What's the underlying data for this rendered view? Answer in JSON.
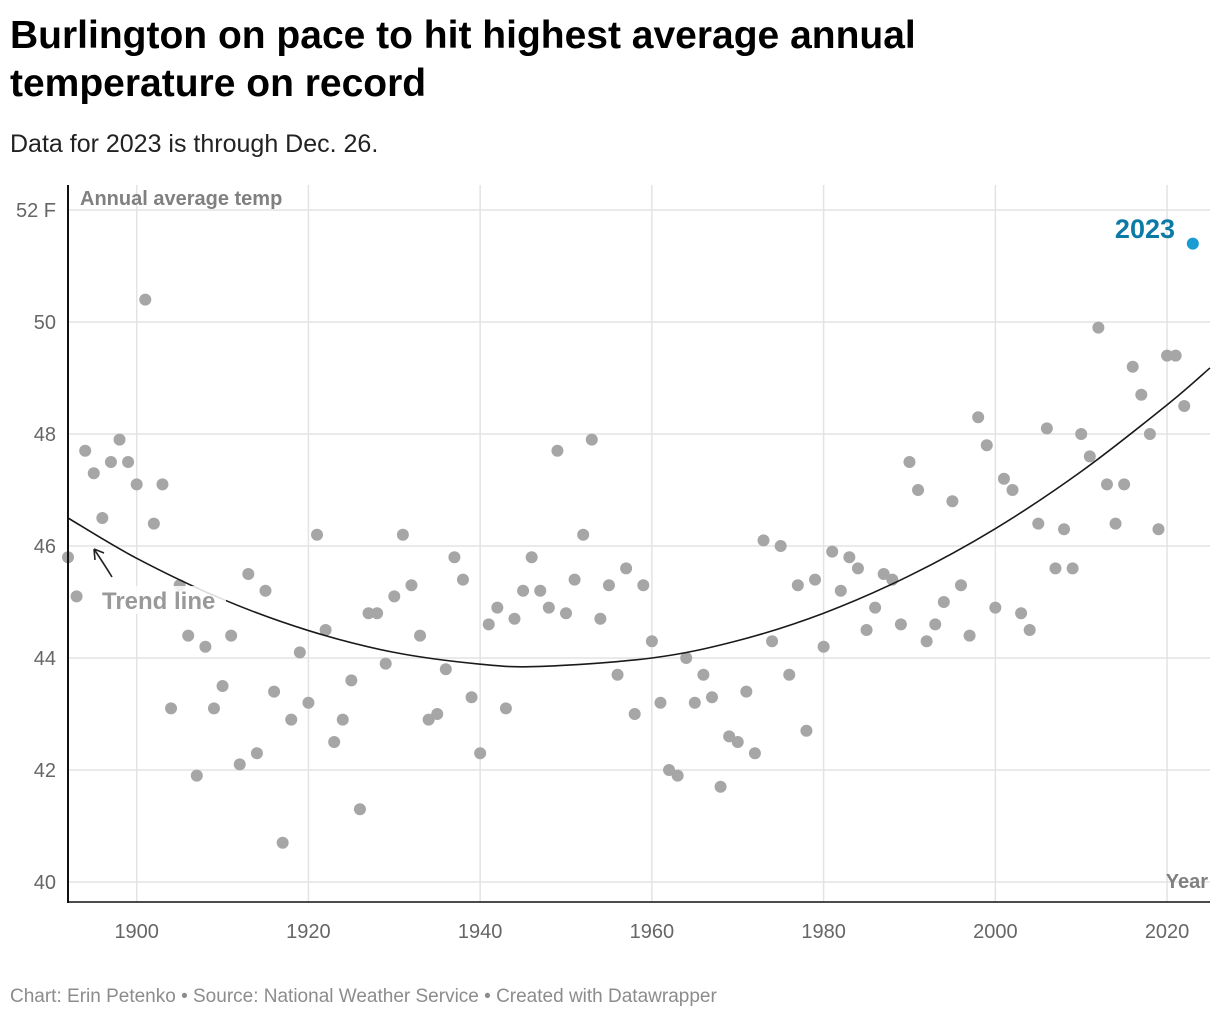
{
  "title": "Burlington on pace to hit highest average annual temperature on record",
  "subtitle": "Data for 2023 is through Dec. 26.",
  "footer": "Chart: Erin Petenko • Source: National Weather Service • Created with Datawrapper",
  "chart_data": {
    "type": "scatter",
    "ylabel": "Annual average temp",
    "xlabel": "Year",
    "xlim": [
      1892,
      2025
    ],
    "ylim": [
      40,
      52
    ],
    "xticks": [
      1900,
      1920,
      1940,
      1960,
      1980,
      2000,
      2020
    ],
    "yticks": [
      {
        "v": 52,
        "label": "52 F"
      },
      {
        "v": 50,
        "label": "50"
      },
      {
        "v": 48,
        "label": "48"
      },
      {
        "v": 46,
        "label": "46"
      },
      {
        "v": 44,
        "label": "44"
      },
      {
        "v": 42,
        "label": "42"
      },
      {
        "v": 40,
        "label": "40"
      }
    ],
    "grid": true,
    "colors": {
      "points": "#a6a6a6",
      "highlight": "#1a9bd1",
      "highlight_label": "#0b7ba6",
      "trend": "#1a1a1a",
      "annotation": "#999999"
    },
    "points": [
      [
        1892,
        45.8
      ],
      [
        1893,
        45.1
      ],
      [
        1894,
        47.7
      ],
      [
        1895,
        47.3
      ],
      [
        1896,
        46.5
      ],
      [
        1897,
        47.5
      ],
      [
        1898,
        47.9
      ],
      [
        1899,
        47.5
      ],
      [
        1900,
        47.1
      ],
      [
        1901,
        50.4
      ],
      [
        1902,
        46.4
      ],
      [
        1903,
        47.1
      ],
      [
        1904,
        43.1
      ],
      [
        1905,
        45.3
      ],
      [
        1906,
        44.4
      ],
      [
        1907,
        41.9
      ],
      [
        1908,
        44.2
      ],
      [
        1909,
        43.1
      ],
      [
        1910,
        43.5
      ],
      [
        1911,
        44.4
      ],
      [
        1912,
        42.1
      ],
      [
        1913,
        45.5
      ],
      [
        1914,
        42.3
      ],
      [
        1915,
        45.2
      ],
      [
        1916,
        43.4
      ],
      [
        1917,
        40.7
      ],
      [
        1918,
        42.9
      ],
      [
        1919,
        44.1
      ],
      [
        1920,
        43.2
      ],
      [
        1921,
        46.2
      ],
      [
        1922,
        44.5
      ],
      [
        1923,
        42.5
      ],
      [
        1924,
        42.9
      ],
      [
        1925,
        43.6
      ],
      [
        1926,
        41.3
      ],
      [
        1927,
        44.8
      ],
      [
        1928,
        44.8
      ],
      [
        1929,
        43.9
      ],
      [
        1930,
        45.1
      ],
      [
        1931,
        46.2
      ],
      [
        1932,
        45.3
      ],
      [
        1933,
        44.4
      ],
      [
        1934,
        42.9
      ],
      [
        1935,
        43.0
      ],
      [
        1936,
        43.8
      ],
      [
        1937,
        45.8
      ],
      [
        1938,
        45.4
      ],
      [
        1939,
        43.3
      ],
      [
        1940,
        42.3
      ],
      [
        1941,
        44.6
      ],
      [
        1942,
        44.9
      ],
      [
        1943,
        43.1
      ],
      [
        1944,
        44.7
      ],
      [
        1945,
        45.2
      ],
      [
        1946,
        45.8
      ],
      [
        1947,
        45.2
      ],
      [
        1948,
        44.9
      ],
      [
        1949,
        47.7
      ],
      [
        1950,
        44.8
      ],
      [
        1951,
        45.4
      ],
      [
        1952,
        46.2
      ],
      [
        1953,
        47.9
      ],
      [
        1954,
        44.7
      ],
      [
        1955,
        45.3
      ],
      [
        1956,
        43.7
      ],
      [
        1957,
        45.6
      ],
      [
        1958,
        43.0
      ],
      [
        1959,
        45.3
      ],
      [
        1960,
        44.3
      ],
      [
        1961,
        43.2
      ],
      [
        1962,
        42.0
      ],
      [
        1963,
        41.9
      ],
      [
        1964,
        44.0
      ],
      [
        1965,
        43.2
      ],
      [
        1966,
        43.7
      ],
      [
        1967,
        43.3
      ],
      [
        1968,
        41.7
      ],
      [
        1969,
        42.6
      ],
      [
        1970,
        42.5
      ],
      [
        1971,
        43.4
      ],
      [
        1972,
        42.3
      ],
      [
        1973,
        46.1
      ],
      [
        1974,
        44.3
      ],
      [
        1975,
        46.0
      ],
      [
        1976,
        43.7
      ],
      [
        1977,
        45.3
      ],
      [
        1978,
        42.7
      ],
      [
        1979,
        45.4
      ],
      [
        1980,
        44.2
      ],
      [
        1981,
        45.9
      ],
      [
        1982,
        45.2
      ],
      [
        1983,
        45.8
      ],
      [
        1984,
        45.6
      ],
      [
        1985,
        44.5
      ],
      [
        1986,
        44.9
      ],
      [
        1987,
        45.5
      ],
      [
        1988,
        45.4
      ],
      [
        1989,
        44.6
      ],
      [
        1990,
        47.5
      ],
      [
        1991,
        47.0
      ],
      [
        1992,
        44.3
      ],
      [
        1993,
        44.6
      ],
      [
        1994,
        45.0
      ],
      [
        1995,
        46.8
      ],
      [
        1996,
        45.3
      ],
      [
        1997,
        44.4
      ],
      [
        1998,
        48.3
      ],
      [
        1999,
        47.8
      ],
      [
        2000,
        44.9
      ],
      [
        2001,
        47.2
      ],
      [
        2002,
        47.0
      ],
      [
        2003,
        44.8
      ],
      [
        2004,
        44.5
      ],
      [
        2005,
        46.4
      ],
      [
        2006,
        48.1
      ],
      [
        2007,
        45.6
      ],
      [
        2008,
        46.3
      ],
      [
        2009,
        45.6
      ],
      [
        2010,
        48.0
      ],
      [
        2011,
        47.6
      ],
      [
        2012,
        49.9
      ],
      [
        2013,
        47.1
      ],
      [
        2014,
        46.4
      ],
      [
        2015,
        47.1
      ],
      [
        2016,
        49.2
      ],
      [
        2017,
        48.7
      ],
      [
        2018,
        48.0
      ],
      [
        2019,
        46.3
      ],
      [
        2020,
        49.4
      ],
      [
        2021,
        49.4
      ],
      [
        2022,
        48.5
      ]
    ],
    "highlight": {
      "label": "2023",
      "x": 2023,
      "y": 51.4
    },
    "trend_line": {
      "label": "Trend line",
      "points": [
        [
          1892,
          46.5
        ],
        [
          1900,
          45.78
        ],
        [
          1910,
          45.05
        ],
        [
          1920,
          44.49
        ],
        [
          1930,
          44.1
        ],
        [
          1940,
          43.89
        ],
        [
          1947,
          43.85
        ],
        [
          1960,
          44.0
        ],
        [
          1970,
          44.31
        ],
        [
          1980,
          44.8
        ],
        [
          1990,
          45.47
        ],
        [
          2000,
          46.31
        ],
        [
          2010,
          47.33
        ],
        [
          2020,
          48.52
        ],
        [
          2025,
          49.18
        ]
      ]
    }
  }
}
